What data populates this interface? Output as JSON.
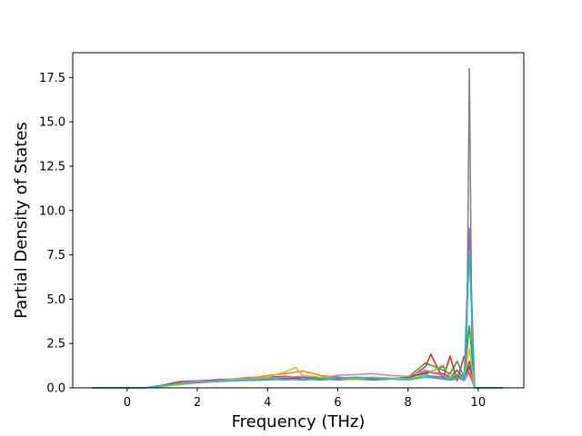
{
  "chart_data": {
    "type": "line",
    "title": "",
    "xlabel": "Frequency (THz)",
    "ylabel": "Partial Density of States",
    "xlim": [
      -1.55,
      11.3
    ],
    "ylim": [
      0,
      18.9
    ],
    "x_ticks": [
      0,
      2,
      4,
      6,
      8,
      10
    ],
    "x_tick_labels": [
      "0",
      "2",
      "4",
      "6",
      "8",
      "10"
    ],
    "y_ticks": [
      0.0,
      2.5,
      5.0,
      7.5,
      10.0,
      12.5,
      15.0,
      17.5
    ],
    "y_tick_labels": [
      "0.0",
      "2.5",
      "5.0",
      "7.5",
      "10.0",
      "12.5",
      "15.0",
      "17.5"
    ],
    "grid": false,
    "legend": "none",
    "series": [
      {
        "color": "#1f77b4",
        "x": [
          -1.0,
          0.5,
          1.0,
          1.5,
          2.0,
          2.5,
          3.0,
          3.5,
          4.0,
          4.5,
          5.0,
          5.5,
          6.0,
          6.5,
          7.0,
          7.5,
          8.0,
          8.5,
          9.0,
          9.2,
          9.4,
          9.6,
          9.75,
          9.9,
          10.7
        ],
        "y": [
          0,
          0,
          0.12,
          0.3,
          0.35,
          0.42,
          0.45,
          0.5,
          0.48,
          0.55,
          0.5,
          0.52,
          0.5,
          0.48,
          0.55,
          0.5,
          0.6,
          0.8,
          1.2,
          0.6,
          1.0,
          0.5,
          1.2,
          0,
          0
        ]
      },
      {
        "color": "#ff7f0e",
        "x": [
          -1.0,
          0.5,
          1.0,
          1.5,
          2.0,
          2.5,
          3.0,
          3.5,
          4.0,
          4.5,
          5.0,
          5.5,
          6.0,
          6.5,
          7.0,
          7.5,
          8.0,
          8.5,
          9.0,
          9.2,
          9.4,
          9.6,
          9.75,
          9.9,
          10.7
        ],
        "y": [
          0,
          0,
          0.1,
          0.25,
          0.3,
          0.35,
          0.5,
          0.55,
          0.7,
          0.8,
          0.95,
          0.7,
          0.6,
          0.55,
          0.6,
          0.5,
          0.55,
          0.9,
          0.7,
          0.5,
          0.6,
          0.4,
          0.9,
          0,
          0
        ]
      },
      {
        "color": "#2ca02c",
        "x": [
          -1.0,
          0.5,
          1.0,
          1.5,
          2.0,
          2.5,
          3.0,
          3.5,
          4.0,
          4.5,
          5.0,
          5.5,
          6.0,
          6.5,
          7.0,
          7.5,
          8.0,
          8.5,
          9.0,
          9.2,
          9.4,
          9.6,
          9.75,
          9.9,
          10.7
        ],
        "y": [
          0,
          0,
          0.08,
          0.2,
          0.3,
          0.4,
          0.42,
          0.5,
          0.55,
          0.6,
          0.5,
          0.45,
          0.5,
          0.55,
          0.45,
          0.5,
          0.6,
          1.4,
          1.0,
          0.8,
          1.5,
          0.6,
          3.5,
          0,
          0
        ]
      },
      {
        "color": "#d62728",
        "x": [
          -1.0,
          0.5,
          1.0,
          1.5,
          2.0,
          2.5,
          3.0,
          3.5,
          4.0,
          4.5,
          5.0,
          5.5,
          6.0,
          6.5,
          7.0,
          7.5,
          8.0,
          8.5,
          8.65,
          9.0,
          9.2,
          9.4,
          9.6,
          9.75,
          9.9,
          10.7
        ],
        "y": [
          0,
          0,
          0.15,
          0.35,
          0.4,
          0.45,
          0.5,
          0.45,
          0.55,
          0.5,
          0.6,
          0.55,
          0.5,
          0.6,
          0.5,
          0.55,
          0.5,
          1.2,
          1.9,
          0.5,
          1.8,
          0.4,
          1.8,
          0.8,
          0,
          0
        ]
      },
      {
        "color": "#9467bd",
        "x": [
          -1.0,
          0.5,
          1.0,
          1.5,
          2.0,
          2.5,
          3.0,
          3.5,
          4.0,
          4.5,
          5.0,
          5.5,
          6.0,
          6.5,
          7.0,
          7.5,
          8.0,
          8.5,
          9.0,
          9.2,
          9.4,
          9.6,
          9.75,
          9.9,
          10.7
        ],
        "y": [
          0,
          0,
          0.1,
          0.2,
          0.3,
          0.35,
          0.4,
          0.45,
          0.5,
          0.45,
          0.5,
          0.5,
          0.55,
          0.5,
          0.45,
          0.5,
          0.5,
          0.7,
          0.6,
          0.5,
          0.8,
          0.5,
          9.0,
          0,
          0
        ]
      },
      {
        "color": "#8c564b",
        "x": [
          -1.0,
          0.5,
          1.0,
          1.5,
          2.0,
          2.5,
          3.0,
          3.5,
          4.0,
          4.5,
          5.0,
          5.5,
          6.0,
          6.5,
          7.0,
          7.5,
          8.0,
          8.5,
          9.0,
          9.2,
          9.4,
          9.6,
          9.75,
          9.9,
          10.7
        ],
        "y": [
          0,
          0,
          0.12,
          0.25,
          0.35,
          0.4,
          0.45,
          0.55,
          0.6,
          0.65,
          0.6,
          0.55,
          0.6,
          0.5,
          0.55,
          0.5,
          0.55,
          0.9,
          0.8,
          0.6,
          0.7,
          0.5,
          1.5,
          0,
          0
        ]
      },
      {
        "color": "#e377c2",
        "x": [
          -1.0,
          0.5,
          1.0,
          1.5,
          2.0,
          2.5,
          3.0,
          3.5,
          4.0,
          4.5,
          5.0,
          5.5,
          6.0,
          6.5,
          7.0,
          7.5,
          8.0,
          8.5,
          9.0,
          9.2,
          9.4,
          9.6,
          9.75,
          9.9,
          10.7
        ],
        "y": [
          0,
          0,
          0.1,
          0.28,
          0.38,
          0.4,
          0.5,
          0.6,
          0.55,
          0.6,
          0.65,
          0.6,
          0.7,
          0.75,
          0.8,
          0.7,
          0.65,
          1.0,
          0.7,
          0.5,
          0.6,
          0.4,
          1.0,
          0,
          0
        ]
      },
      {
        "color": "#7f7f7f",
        "x": [
          -1.0,
          0.5,
          1.0,
          1.5,
          2.0,
          2.5,
          3.0,
          3.5,
          4.0,
          4.5,
          5.0,
          5.5,
          6.0,
          6.5,
          7.0,
          7.5,
          8.0,
          8.5,
          9.0,
          9.2,
          9.4,
          9.6,
          9.68,
          9.75,
          9.82,
          9.9,
          10.7
        ],
        "y": [
          0,
          0,
          0.1,
          0.2,
          0.28,
          0.35,
          0.4,
          0.42,
          0.45,
          0.5,
          0.45,
          0.5,
          0.45,
          0.5,
          0.45,
          0.5,
          0.5,
          0.6,
          0.5,
          0.45,
          0.5,
          0.6,
          3.0,
          18.0,
          3.0,
          0,
          0
        ]
      },
      {
        "color": "#bcbd22",
        "x": [
          -1.0,
          0.5,
          1.0,
          1.5,
          2.0,
          2.5,
          3.0,
          3.5,
          4.0,
          4.5,
          4.8,
          5.0,
          5.5,
          6.0,
          6.5,
          7.0,
          7.5,
          8.0,
          8.5,
          9.0,
          9.2,
          9.4,
          9.6,
          9.75,
          9.9,
          10.7
        ],
        "y": [
          0,
          0,
          0.08,
          0.18,
          0.28,
          0.35,
          0.45,
          0.5,
          0.6,
          0.9,
          1.15,
          0.7,
          0.6,
          0.55,
          0.5,
          0.6,
          0.55,
          0.5,
          0.7,
          1.3,
          0.6,
          0.8,
          0.5,
          2.2,
          0,
          0
        ]
      },
      {
        "color": "#17becf",
        "x": [
          -1.0,
          0.5,
          1.0,
          1.5,
          2.0,
          2.5,
          3.0,
          3.5,
          4.0,
          4.5,
          5.0,
          5.5,
          6.0,
          6.5,
          7.0,
          7.5,
          8.0,
          8.5,
          9.0,
          9.2,
          9.4,
          9.6,
          9.75,
          9.9,
          10.7
        ],
        "y": [
          0,
          0,
          0.12,
          0.25,
          0.3,
          0.38,
          0.4,
          0.45,
          0.5,
          0.48,
          0.45,
          0.5,
          0.55,
          0.6,
          0.55,
          0.5,
          0.45,
          0.6,
          0.55,
          0.5,
          0.6,
          0.5,
          7.5,
          0,
          0
        ]
      }
    ]
  }
}
